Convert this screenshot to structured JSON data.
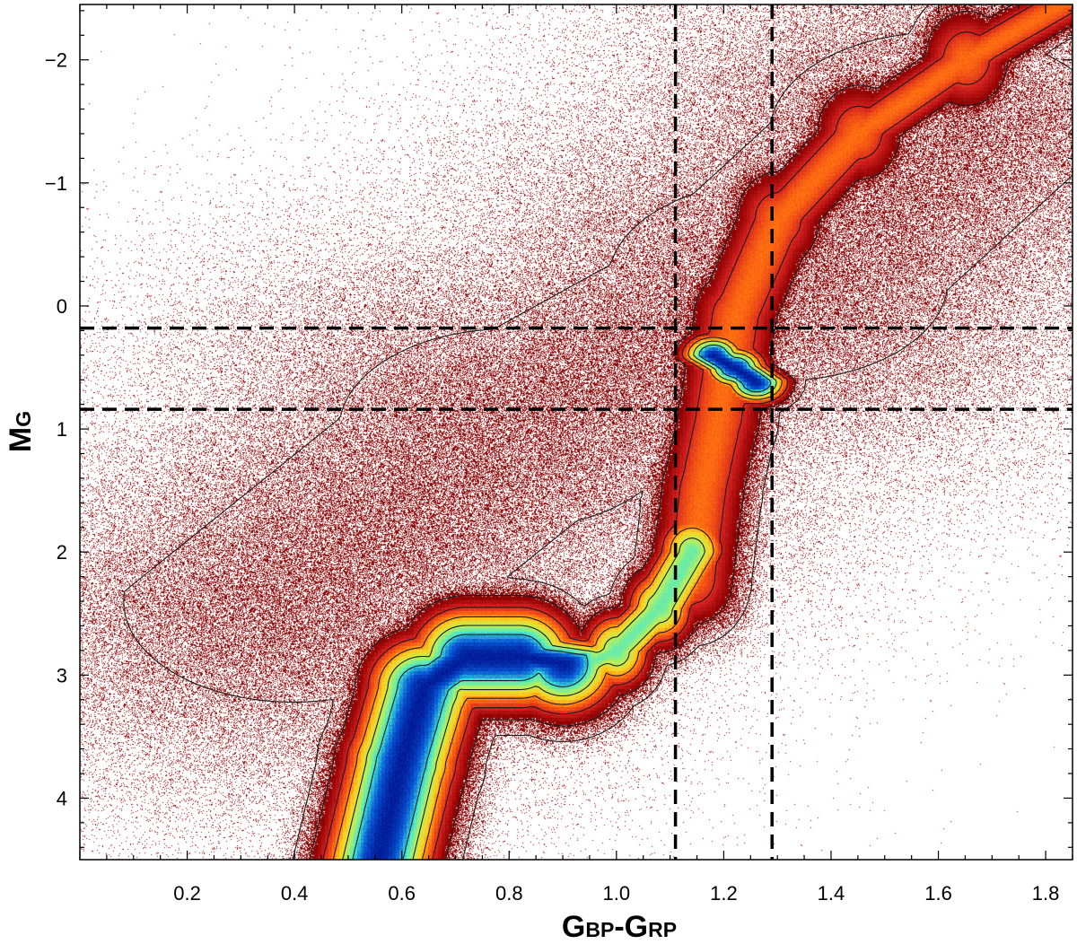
{
  "chart_data": {
    "type": "scatter",
    "title": "",
    "xlabel": {
      "main": "G",
      "sub1": "BP",
      "dash": "-",
      "main2": "G",
      "sub2": "RP"
    },
    "ylabel": {
      "main": "M",
      "sub": "G"
    },
    "xlim": [
      0.0,
      1.85
    ],
    "ylim": [
      4.5,
      -2.45
    ],
    "y_inverted": true,
    "grid": false,
    "x_ticks": [
      0.2,
      0.4,
      0.6,
      0.8,
      1.0,
      1.2,
      1.4,
      1.6,
      1.8
    ],
    "x_tick_labels": [
      "0.2",
      "0.4",
      "0.6",
      "0.8",
      "1.0",
      "1.2",
      "1.4",
      "1.6",
      "1.8"
    ],
    "y_ticks": [
      -2,
      -1,
      0,
      1,
      2,
      3,
      4
    ],
    "y_tick_labels": [
      "−2",
      "−1",
      "0",
      "1",
      "2",
      "3",
      "4"
    ],
    "dashed_lines": {
      "vertical_x": [
        1.11,
        1.29
      ],
      "horizontal_y": [
        0.18,
        0.84
      ]
    },
    "density_colormap": [
      "#8b0000",
      "#d42020",
      "#ff6a10",
      "#ffd21f",
      "#b8f25a",
      "#3ee8d8",
      "#0a5ad8",
      "#00128f"
    ],
    "density_components": [
      {
        "name": "main sequence / turnoff",
        "points": [
          [
            0.55,
            4.6
          ],
          [
            0.6,
            3.7
          ],
          [
            0.64,
            3.1
          ],
          [
            0.72,
            2.85
          ],
          [
            0.82,
            2.85
          ],
          [
            0.9,
            2.9
          ]
        ],
        "sx": 0.07,
        "sy": 0.28,
        "weight": 1.0
      },
      {
        "name": "subgiant branch",
        "points": [
          [
            0.9,
            3.0
          ],
          [
            1.0,
            2.8
          ],
          [
            1.08,
            2.45
          ],
          [
            1.14,
            2.0
          ]
        ],
        "sx": 0.045,
        "sy": 0.22,
        "weight": 0.75
      },
      {
        "name": "red giant branch",
        "points": [
          [
            1.14,
            2.2
          ],
          [
            1.16,
            1.5
          ],
          [
            1.19,
            0.9
          ],
          [
            1.22,
            0.1
          ],
          [
            1.3,
            -0.7
          ],
          [
            1.45,
            -1.4
          ],
          [
            1.65,
            -2.0
          ],
          [
            1.85,
            -2.5
          ]
        ],
        "sx": 0.06,
        "sy": 0.3,
        "weight": 0.45
      },
      {
        "name": "red clump",
        "points": [
          [
            1.18,
            0.4
          ],
          [
            1.22,
            0.5
          ],
          [
            1.26,
            0.62
          ]
        ],
        "sx": 0.04,
        "sy": 0.12,
        "weight": 1.0
      },
      {
        "name": "diffuse halo",
        "points": [
          [
            0.4,
            2.4
          ],
          [
            0.8,
            1.0
          ],
          [
            1.3,
            -0.2
          ],
          [
            1.6,
            -1.4
          ]
        ],
        "sx": 0.35,
        "sy": 0.9,
        "weight": 0.12
      }
    ],
    "contour_levels": [
      0.08,
      0.2,
      0.35,
      0.5,
      0.65,
      0.8
    ]
  }
}
